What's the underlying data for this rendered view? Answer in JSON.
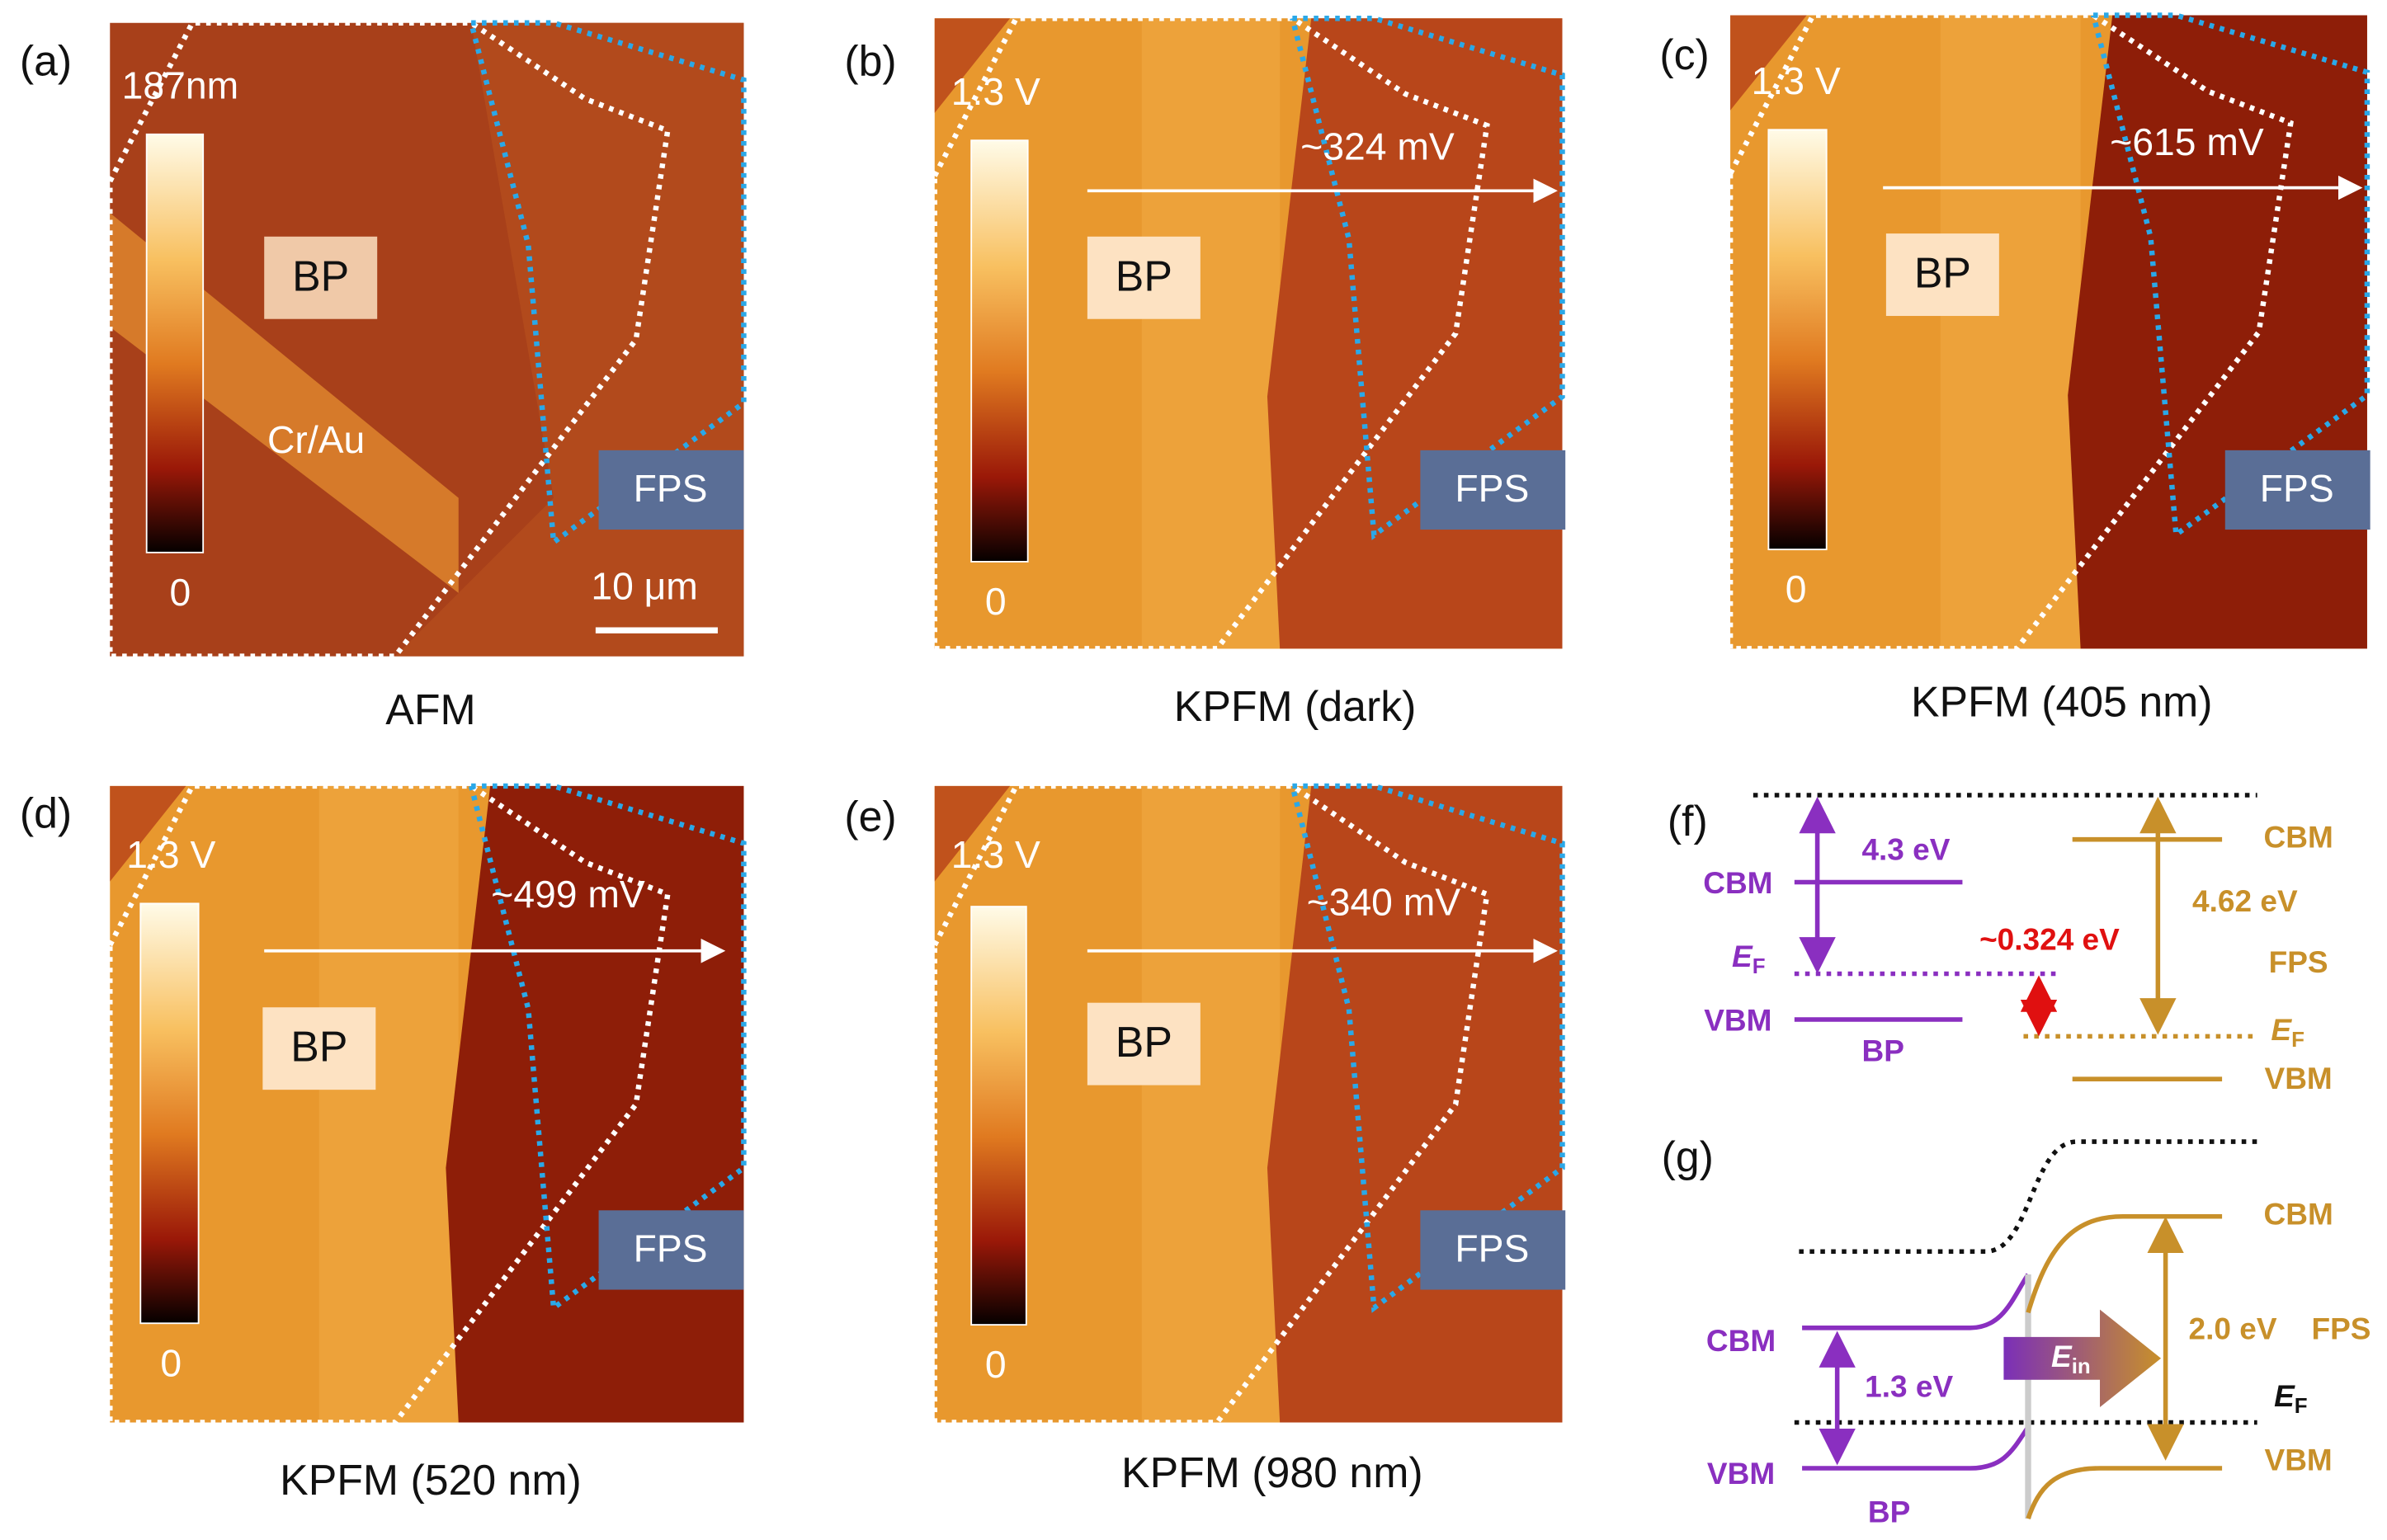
{
  "panels": [
    {
      "letter": "(a)",
      "caption": "AFM",
      "scale_max": "187nm",
      "scale_min": "0",
      "bp": "BP",
      "cr_au": "Cr/Au",
      "fps": "FPS",
      "scalebar": "10 μm"
    },
    {
      "letter": "(b)",
      "caption": "KPFM (dark)",
      "scale_max": "1.3 V",
      "scale_min": "0",
      "bp": "BP",
      "fps": "FPS",
      "shift": "~324 mV"
    },
    {
      "letter": "(c)",
      "caption": "KPFM (405 nm)",
      "scale_max": "1.3 V",
      "scale_min": "0",
      "bp": "BP",
      "fps": "FPS",
      "shift": "~615 mV"
    },
    {
      "letter": "(d)",
      "caption": "KPFM (520 nm)",
      "scale_max": "1.3 V",
      "scale_min": "0",
      "bp": "BP",
      "fps": "FPS",
      "shift": "~499 mV"
    },
    {
      "letter": "(e)",
      "caption": "KPFM (980 nm)",
      "scale_max": "1.3 V",
      "scale_min": "0",
      "bp": "BP",
      "fps": "FPS",
      "shift": "~340 mV"
    }
  ],
  "band_f": {
    "letter": "(f)",
    "bp_gap": "4.3 eV",
    "bp_cbm": "CBM",
    "bp_ef": {
      "main": "E",
      "sub": "F"
    },
    "bp_vbm": "VBM",
    "bp": "BP",
    "offset": "~0.324 eV",
    "fps_gap": "4.62 eV",
    "fps": "FPS",
    "fps_cbm": "CBM",
    "fps_ef": {
      "main": "E",
      "sub": "F"
    },
    "fps_vbm": "VBM"
  },
  "band_g": {
    "letter": "(g)",
    "bp_cbm": "CBM",
    "bp_vbm": "VBM",
    "bp_gap": "1.3 eV",
    "bp": "BP",
    "field": {
      "main": "E",
      "sub": "in"
    },
    "fps_gap": "2.0 eV",
    "fps": "FPS",
    "fps_cbm": "CBM",
    "fps_vbm": "VBM",
    "ef": {
      "main": "E",
      "sub": "F"
    }
  }
}
